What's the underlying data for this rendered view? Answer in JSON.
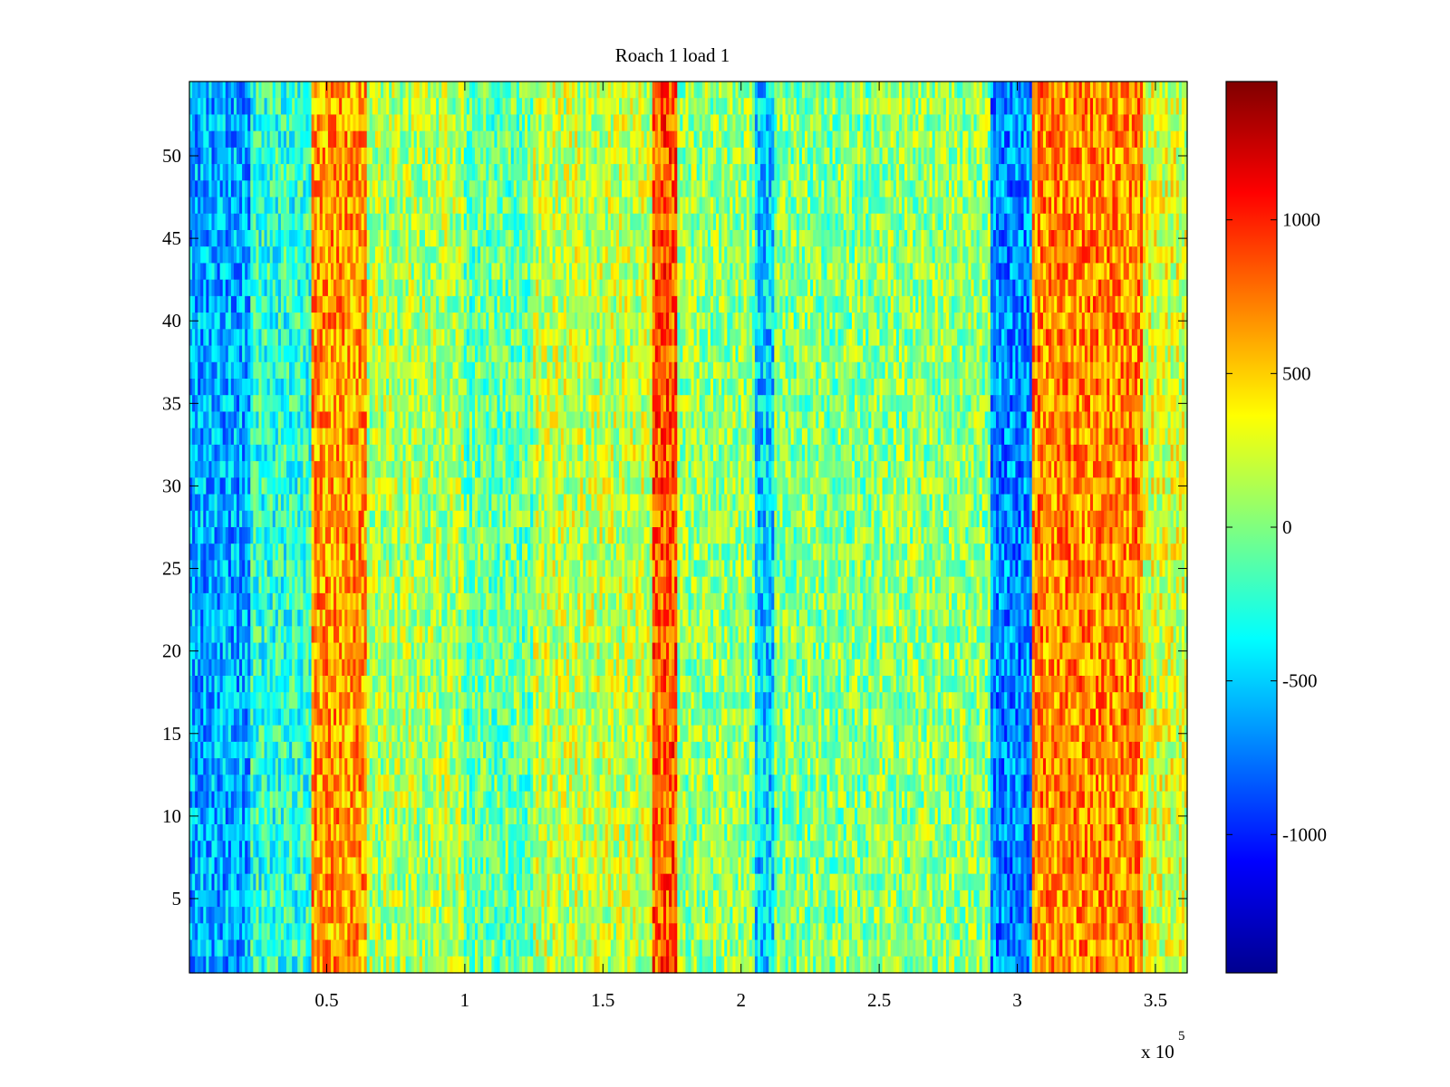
{
  "chart_data": {
    "type": "heatmap",
    "title": "Roach 1 load 1",
    "xlabel": "",
    "ylabel": "",
    "x_exponent_label": "x 10",
    "x_exponent_power": "5",
    "xlim": [
      0.003,
      3.615
    ],
    "ylim": [
      0.5,
      54.5
    ],
    "x_ticks": [
      0.5,
      1,
      1.5,
      2,
      2.5,
      3,
      3.5
    ],
    "x_tick_labels": [
      "0.5",
      "1",
      "1.5",
      "2",
      "2.5",
      "3",
      "3.5"
    ],
    "y_ticks": [
      5,
      10,
      15,
      20,
      25,
      30,
      35,
      40,
      45,
      50
    ],
    "y_tick_labels": [
      "5",
      "10",
      "15",
      "20",
      "25",
      "30",
      "35",
      "40",
      "45",
      "50"
    ],
    "rows": 54,
    "colormap": "jet",
    "colorbar": {
      "clim": [
        -1450,
        1450
      ],
      "ticks": [
        -1000,
        -500,
        0,
        500,
        1000
      ],
      "tick_labels": [
        "-1000",
        "-500",
        "0",
        "500",
        "1000"
      ]
    },
    "column_bands": [
      {
        "x_start": 0.003,
        "x_end": 0.22,
        "mean": -600
      },
      {
        "x_start": 0.22,
        "x_end": 0.44,
        "mean": -250
      },
      {
        "x_start": 0.44,
        "x_end": 0.65,
        "mean": 650
      },
      {
        "x_start": 0.65,
        "x_end": 1.0,
        "mean": 120
      },
      {
        "x_start": 1.0,
        "x_end": 1.25,
        "mean": -80
      },
      {
        "x_start": 1.25,
        "x_end": 1.68,
        "mean": 180
      },
      {
        "x_start": 1.68,
        "x_end": 1.77,
        "mean": 850
      },
      {
        "x_start": 1.77,
        "x_end": 2.05,
        "mean": 50
      },
      {
        "x_start": 2.05,
        "x_end": 2.12,
        "mean": -500
      },
      {
        "x_start": 2.12,
        "x_end": 2.48,
        "mean": 0
      },
      {
        "x_start": 2.48,
        "x_end": 2.9,
        "mean": 50
      },
      {
        "x_start": 2.9,
        "x_end": 3.05,
        "mean": -700
      },
      {
        "x_start": 3.05,
        "x_end": 3.45,
        "mean": 700
      },
      {
        "x_start": 3.45,
        "x_end": 3.615,
        "mean": 250
      }
    ]
  }
}
